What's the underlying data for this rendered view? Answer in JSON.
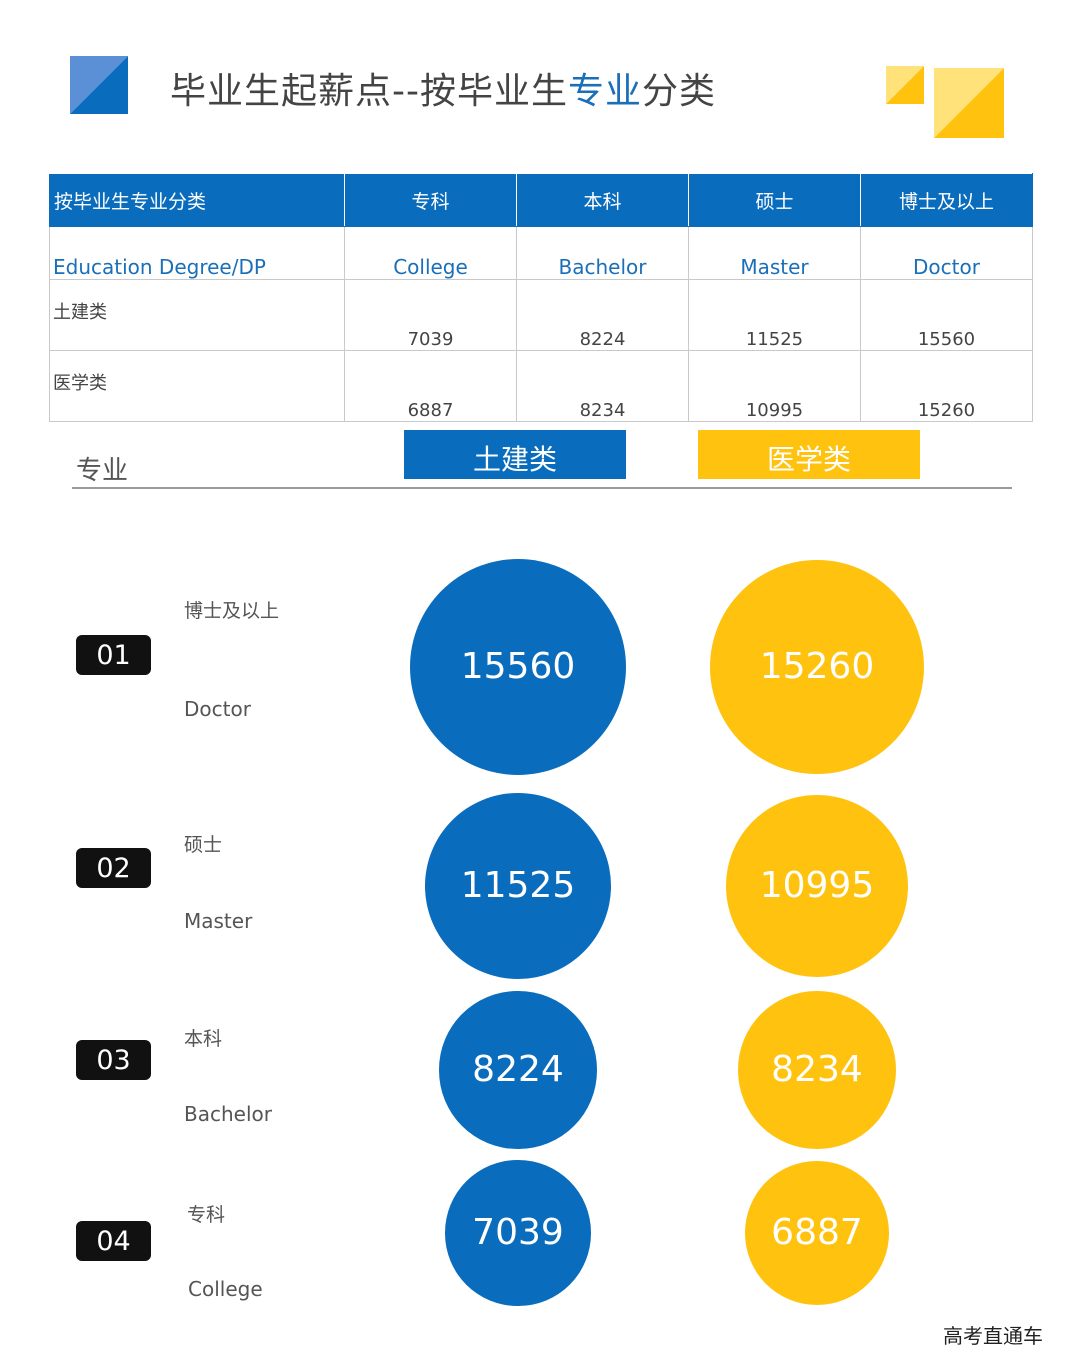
{
  "title": {
    "pre": "毕业生起薪点--按毕业生",
    "highlight": "专业",
    "post": "分类"
  },
  "colors": {
    "blue": "#0a6cbd",
    "yellow": "#ffc20e",
    "yellow_light": "#ffe27a"
  },
  "table": {
    "header": [
      "按毕业生专业分类",
      "专科",
      "本科",
      "硕士",
      "博士及以上"
    ],
    "english": [
      "Education Degree/DP",
      "College",
      "Bachelor",
      "Master",
      "Doctor"
    ],
    "rows": [
      {
        "name": "土建类",
        "values": [
          "7039",
          "8224",
          "11525",
          "15560"
        ]
      },
      {
        "name": "医学类",
        "values": [
          "6887",
          "8234",
          "10995",
          "15260"
        ]
      }
    ]
  },
  "legend": {
    "major_label": "专业",
    "civil": "土建类",
    "medical": "医学类"
  },
  "chart_data": {
    "type": "bubble",
    "series": [
      {
        "name": "土建类",
        "color": "#0a6cbd",
        "values": [
          15560,
          11525,
          8224,
          7039
        ]
      },
      {
        "name": "医学类",
        "color": "#ffc20e",
        "values": [
          15260,
          10995,
          8234,
          6887
        ]
      }
    ],
    "categories": [
      {
        "num": "01",
        "cn": "博士及以上",
        "en": "Doctor"
      },
      {
        "num": "02",
        "cn": "硕士",
        "en": "Master"
      },
      {
        "num": "03",
        "cn": "本科",
        "en": "Bachelor"
      },
      {
        "num": "04",
        "cn": "专科",
        "en": "College"
      }
    ]
  },
  "watermark": "高考直通车"
}
